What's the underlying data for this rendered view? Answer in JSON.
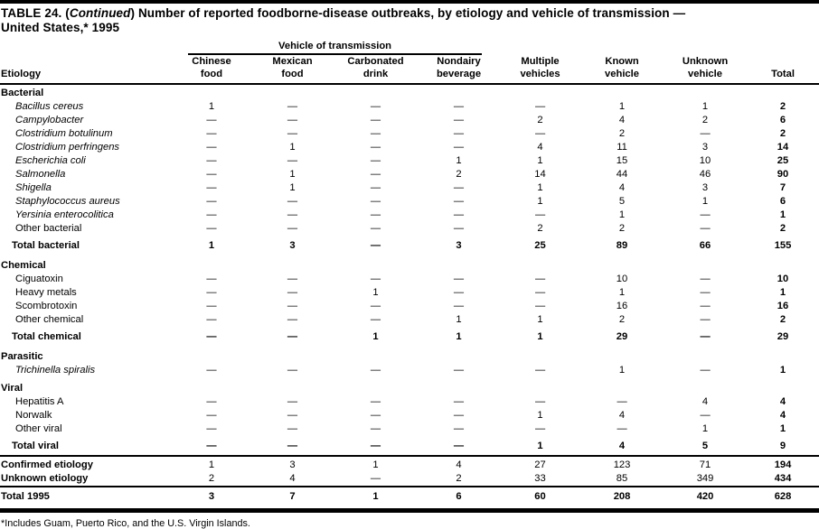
{
  "page": {
    "title_bold_prefix": "TABLE 24. (",
    "title_continued": "Continued",
    "title_line1_rest": ") Number of reported foodborne-disease outbreaks, by etiology and vehicle of transmission —",
    "title_line2": "United States,* 1995",
    "footnote": "*Includes Guam, Puerto Rico, and the U.S. Virgin Islands."
  },
  "table": {
    "vehicle_span_header": "Vehicle of transmission",
    "etiology_header": "Etiology",
    "column_headers": [
      {
        "line1": "Chinese",
        "line2": "food"
      },
      {
        "line1": "Mexican",
        "line2": "food"
      },
      {
        "line1": "Carbonated",
        "line2": "drink"
      },
      {
        "line1": "Nondairy",
        "line2": "beverage"
      },
      {
        "line1": "Multiple",
        "line2": "vehicles"
      },
      {
        "line1": "Known",
        "line2": "vehicle"
      },
      {
        "line1": "Unknown",
        "line2": "vehicle"
      },
      {
        "line1": "",
        "line2": "Total"
      }
    ],
    "rows": [
      {
        "kind": "section",
        "label": "Bacterial"
      },
      {
        "kind": "data",
        "label": "Bacillus cereus",
        "italic": true,
        "values": [
          "1",
          "—",
          "—",
          "—",
          "—",
          "1",
          "1",
          "2"
        ]
      },
      {
        "kind": "data",
        "label": "Campylobacter",
        "italic": true,
        "values": [
          "—",
          "—",
          "—",
          "—",
          "2",
          "4",
          "2",
          "6"
        ]
      },
      {
        "kind": "data",
        "label": "Clostridium botulinum",
        "italic": true,
        "values": [
          "—",
          "—",
          "—",
          "—",
          "—",
          "2",
          "—",
          "2"
        ]
      },
      {
        "kind": "data",
        "label": "Clostridium perfringens",
        "italic": true,
        "values": [
          "—",
          "1",
          "—",
          "—",
          "4",
          "11",
          "3",
          "14"
        ]
      },
      {
        "kind": "data",
        "label": "Escherichia coli",
        "italic": true,
        "values": [
          "—",
          "—",
          "—",
          "1",
          "1",
          "15",
          "10",
          "25"
        ]
      },
      {
        "kind": "data",
        "label": "Salmonella",
        "italic": true,
        "values": [
          "—",
          "1",
          "—",
          "2",
          "14",
          "44",
          "46",
          "90"
        ]
      },
      {
        "kind": "data",
        "label": "Shigella",
        "italic": true,
        "values": [
          "—",
          "1",
          "—",
          "—",
          "1",
          "4",
          "3",
          "7"
        ]
      },
      {
        "kind": "data",
        "label": "Staphylococcus aureus",
        "italic": true,
        "values": [
          "—",
          "—",
          "—",
          "—",
          "1",
          "5",
          "1",
          "6"
        ]
      },
      {
        "kind": "data",
        "label": "Yersinia enterocolitica",
        "italic": true,
        "values": [
          "—",
          "—",
          "—",
          "—",
          "—",
          "1",
          "—",
          "1"
        ]
      },
      {
        "kind": "data",
        "label": "Other bacterial",
        "italic": false,
        "values": [
          "—",
          "—",
          "—",
          "—",
          "2",
          "2",
          "—",
          "2"
        ]
      },
      {
        "kind": "total",
        "label": "Total bacterial",
        "values": [
          "1",
          "3",
          "—",
          "3",
          "25",
          "89",
          "66",
          "155"
        ]
      },
      {
        "kind": "section",
        "label": "Chemical"
      },
      {
        "kind": "data",
        "label": "Ciguatoxin",
        "italic": false,
        "values": [
          "—",
          "—",
          "—",
          "—",
          "—",
          "10",
          "—",
          "10"
        ]
      },
      {
        "kind": "data",
        "label": "Heavy metals",
        "italic": false,
        "values": [
          "—",
          "—",
          "1",
          "—",
          "—",
          "1",
          "—",
          "1"
        ]
      },
      {
        "kind": "data",
        "label": "Scombrotoxin",
        "italic": false,
        "values": [
          "—",
          "—",
          "—",
          "—",
          "—",
          "16",
          "—",
          "16"
        ]
      },
      {
        "kind": "data",
        "label": "Other chemical",
        "italic": false,
        "values": [
          "—",
          "—",
          "—",
          "1",
          "1",
          "2",
          "—",
          "2"
        ]
      },
      {
        "kind": "total",
        "label": "Total chemical",
        "values": [
          "—",
          "—",
          "1",
          "1",
          "1",
          "29",
          "—",
          "29"
        ]
      },
      {
        "kind": "section",
        "label": "Parasitic"
      },
      {
        "kind": "data",
        "label": "Trichinella spiralis",
        "italic": true,
        "values": [
          "—",
          "—",
          "—",
          "—",
          "—",
          "1",
          "—",
          "1"
        ]
      },
      {
        "kind": "section",
        "label": "Viral"
      },
      {
        "kind": "data",
        "label": "Hepatitis A",
        "italic": false,
        "values": [
          "—",
          "—",
          "—",
          "—",
          "—",
          "—",
          "4",
          "4"
        ]
      },
      {
        "kind": "data",
        "label": "Norwalk",
        "italic": false,
        "values": [
          "—",
          "—",
          "—",
          "—",
          "1",
          "4",
          "—",
          "4"
        ]
      },
      {
        "kind": "data",
        "label": "Other viral",
        "italic": false,
        "values": [
          "—",
          "—",
          "—",
          "—",
          "—",
          "—",
          "1",
          "1"
        ]
      },
      {
        "kind": "total",
        "label": "Total viral",
        "values": [
          "—",
          "—",
          "—",
          "—",
          "1",
          "4",
          "5",
          "9"
        ]
      },
      {
        "kind": "summary",
        "label": "Confirmed etiology",
        "rule_above": true,
        "values": [
          "1",
          "3",
          "1",
          "4",
          "27",
          "123",
          "71",
          "194"
        ]
      },
      {
        "kind": "summary",
        "label": "Unknown etiology",
        "values": [
          "2",
          "4",
          "—",
          "2",
          "33",
          "85",
          "349",
          "434"
        ]
      },
      {
        "kind": "grandtotal",
        "label": "Total 1995",
        "rule_above": true,
        "values": [
          "3",
          "7",
          "1",
          "6",
          "60",
          "208",
          "420",
          "628"
        ]
      }
    ]
  }
}
